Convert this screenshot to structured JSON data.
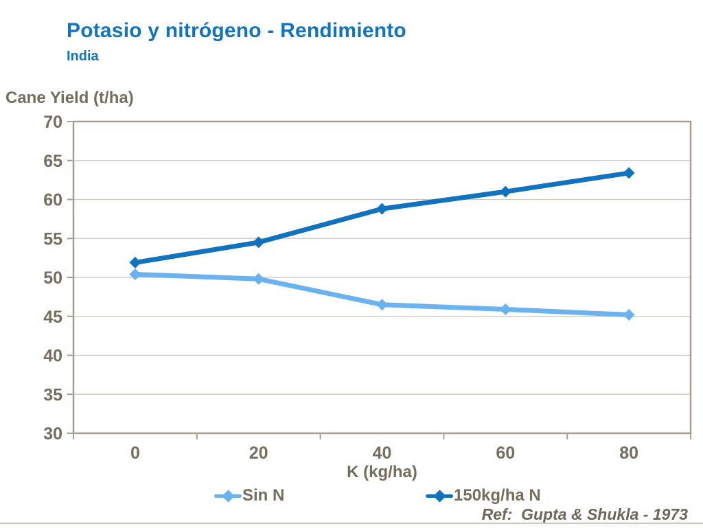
{
  "header": {
    "title": "Potasio y nitrógeno - Rendimiento",
    "subtitle": "India"
  },
  "chart_data": {
    "type": "line",
    "title": "Potasio y nitrógeno - Rendimiento (India)",
    "xlabel": "K (kg/ha)",
    "ylabel": "Cane Yield (t/ha)",
    "x": [
      0,
      20,
      40,
      60,
      80
    ],
    "x_tick_labels": [
      "0",
      "20",
      "40",
      "60",
      "80"
    ],
    "ylim": [
      30,
      70
    ],
    "yticks": [
      30,
      35,
      40,
      45,
      50,
      55,
      60,
      65,
      70
    ],
    "grid": "horizontal",
    "legend_position": "bottom",
    "series": [
      {
        "name": "Sin N",
        "color": "#6ab3f0",
        "marker": "diamond",
        "values": [
          50.4,
          49.8,
          46.5,
          45.9,
          45.2
        ]
      },
      {
        "name": "150kg/ha N",
        "color": "#1173bd",
        "marker": "diamond",
        "values": [
          51.9,
          54.5,
          58.8,
          61.0,
          63.4
        ]
      }
    ]
  },
  "footer": {
    "reference": "Ref:  Gupta & Shukla - 1973"
  },
  "colors": {
    "title_blue": "#1274bf",
    "axis_text": "#756d5e",
    "plot_border": "#a79f92",
    "gridline": "#cac5be",
    "series_light": "#6ab3f0",
    "series_dark": "#1173bd"
  }
}
